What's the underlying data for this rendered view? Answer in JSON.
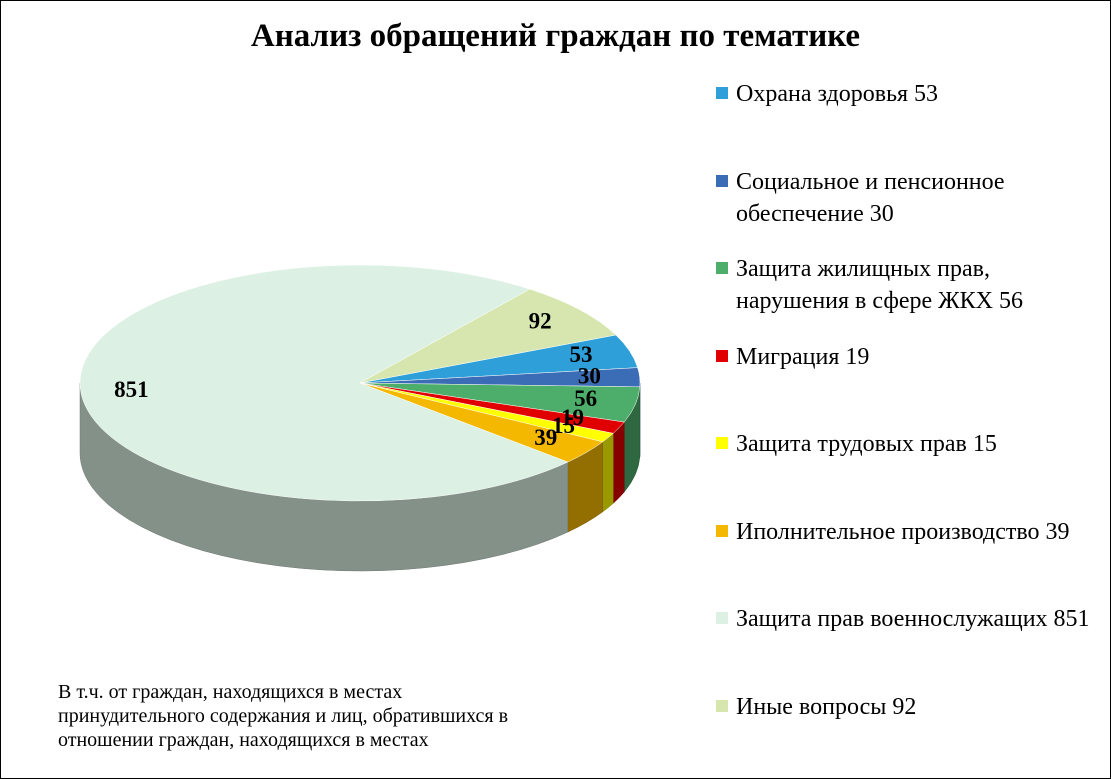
{
  "chart_data": {
    "type": "pie3d",
    "title": "Анализ обращений граждан по тематике",
    "series": [
      {
        "name": "Охрана здоровья 53",
        "color": "#2e9fd8",
        "value": 53
      },
      {
        "name": "Социальное и пенсионное обеспечение 30",
        "color": "#3a6db5",
        "value": 30
      },
      {
        "name": "Защита жилищных прав, нарушения в сфере ЖКХ 56",
        "color": "#4cae6a",
        "value": 56
      },
      {
        "name": "Миграция 19",
        "color": "#e00000",
        "value": 19
      },
      {
        "name": "Защита трудовых прав 15",
        "color": "#ffff00",
        "value": 15
      },
      {
        "name": "Иполнительное производство 39",
        "color": "#f5b800",
        "value": 39
      },
      {
        "name": "Защита прав военнослужащих  851",
        "color": "#dcf1e3",
        "value": 851
      },
      {
        "name": "Иные вопросы 92",
        "color": "#d6e6ae",
        "value": 92
      }
    ],
    "annotation": [
      "В т.ч. от граждан, находящихся в местах",
      "принудительного содержания и лиц, обратившихся в",
      "отношении граждан, находящихся в местах"
    ]
  }
}
